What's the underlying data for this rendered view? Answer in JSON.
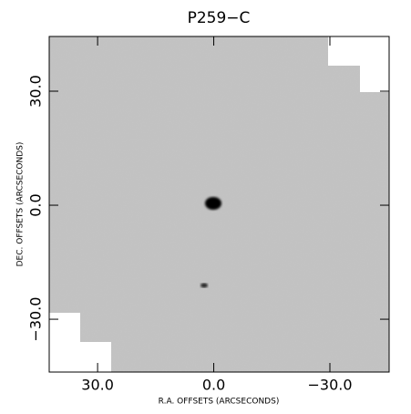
{
  "chart_data": {
    "type": "image",
    "title": "P259−C",
    "x_label": "R.A. OFFSETS (ARCSECONDS)",
    "y_label": "DEC. OFFSETS (ARCSECONDS)",
    "xlim": [
      42.5,
      -45.3
    ],
    "ylim": [
      -43.9,
      44.4
    ],
    "xticks": [
      {
        "value": 30,
        "label": "30.0"
      },
      {
        "value": 0,
        "label": "0.0"
      },
      {
        "value": -30,
        "label": "−30.0"
      }
    ],
    "yticks": [
      {
        "value": 30,
        "label": "30.0"
      },
      {
        "value": 0,
        "label": "0.0"
      },
      {
        "value": -30,
        "label": "−30.0"
      }
    ]
  }
}
